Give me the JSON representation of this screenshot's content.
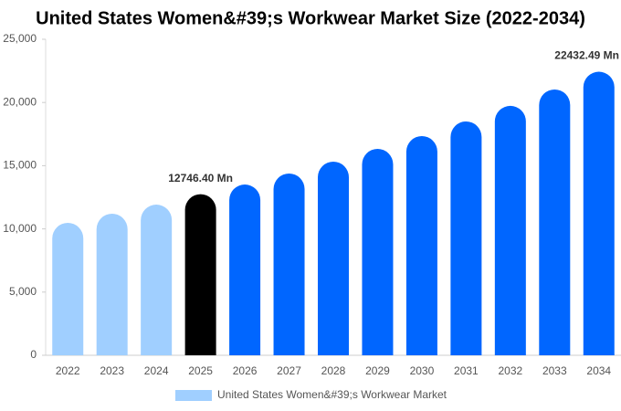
{
  "chart_data": {
    "type": "bar",
    "title": "United States Women&#39;s Workwear Market Size (2022-2034)",
    "categories": [
      "2022",
      "2023",
      "2024",
      "2025",
      "2026",
      "2027",
      "2028",
      "2029",
      "2030",
      "2031",
      "2032",
      "2033",
      "2034"
    ],
    "series": [
      {
        "name": "United States Women&#39;s Workwear Market",
        "color": "#a0cfff",
        "colors": [
          "#a0cfff",
          "#a0cfff",
          "#a0cfff",
          "#000000",
          "#0066ff",
          "#0066ff",
          "#0066ff",
          "#0066ff",
          "#0066ff",
          "#0066ff",
          "#0066ff",
          "#0066ff",
          "#0066ff"
        ],
        "values": [
          10480,
          11200,
          11920,
          12746.4,
          13510,
          14380,
          15320,
          16330,
          17340,
          18500,
          19730,
          21030,
          22432.49
        ],
        "value_labels": [
          null,
          null,
          null,
          "12746.40 Mn",
          null,
          null,
          null,
          null,
          null,
          null,
          null,
          null,
          "22432.49 Mn"
        ]
      }
    ],
    "ylim": [
      0,
      25000
    ],
    "yticks": [
      0,
      {
        "value": 5000,
        "label": "5,000"
      },
      {
        "value": 10000,
        "label": "10,000"
      },
      {
        "value": 15000,
        "label": "15,000"
      },
      {
        "value": 20000,
        "label": "20,000"
      },
      {
        "value": 25000,
        "label": "25,000"
      }
    ],
    "grid": false,
    "legend": "bottom"
  }
}
